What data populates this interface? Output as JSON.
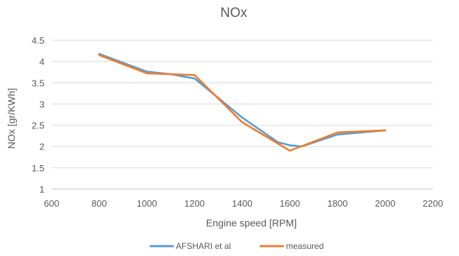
{
  "chart_data": {
    "type": "line",
    "title": "NOx",
    "xlabel": "Engine speed [RPM]",
    "ylabel": "NOx [gr/KWh]",
    "xlim": [
      600,
      2200
    ],
    "ylim": [
      1,
      4.5
    ],
    "x_ticks": [
      "600",
      "800",
      "1000",
      "1200",
      "1400",
      "1600",
      "1800",
      "2000",
      "2200"
    ],
    "y_ticks": [
      "1",
      "1.5",
      "2",
      "2.5",
      "3",
      "3.5",
      "4",
      "4.5"
    ],
    "grid": "horizontal",
    "legend_position": "bottom",
    "series": [
      {
        "name": "AFSHARI et al",
        "color": "#5b9bd5",
        "x": [
          800,
          1000,
          1100,
          1200,
          1400,
          1550,
          1600,
          1650,
          1800,
          2000
        ],
        "y": [
          4.18,
          3.76,
          3.7,
          3.6,
          2.68,
          2.1,
          2.03,
          2.0,
          2.28,
          2.38
        ]
      },
      {
        "name": "measured",
        "color": "#ed7d31",
        "x": [
          800,
          1000,
          1100,
          1200,
          1400,
          1600,
          1800,
          2000
        ],
        "y": [
          4.15,
          3.72,
          3.7,
          3.68,
          2.57,
          1.9,
          2.33,
          2.38
        ]
      }
    ]
  }
}
